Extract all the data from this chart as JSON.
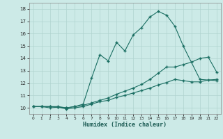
{
  "xlabel": "Humidex (Indice chaleur)",
  "background_color": "#cceae7",
  "grid_color": "#b0d4d0",
  "line_color": "#1a6e62",
  "xlim": [
    -0.5,
    22.5
  ],
  "ylim": [
    9.5,
    18.5
  ],
  "xticks": [
    0,
    1,
    2,
    3,
    4,
    5,
    6,
    7,
    8,
    9,
    10,
    11,
    12,
    13,
    14,
    15,
    16,
    17,
    18,
    19,
    20,
    21,
    22
  ],
  "yticks": [
    10,
    11,
    12,
    13,
    14,
    15,
    16,
    17,
    18
  ],
  "line1_x": [
    0,
    1,
    2,
    3,
    4,
    5,
    6,
    7,
    8,
    9,
    10,
    11,
    12,
    13,
    14,
    15,
    16,
    17,
    18,
    20,
    22
  ],
  "line1_y": [
    10.1,
    10.1,
    10.1,
    10.1,
    10.0,
    10.1,
    10.3,
    12.4,
    14.3,
    13.8,
    15.3,
    14.6,
    15.9,
    16.5,
    17.35,
    17.8,
    17.5,
    16.6,
    15.0,
    12.3,
    12.2
  ],
  "line2_x": [
    0,
    1,
    2,
    3,
    4,
    5,
    6,
    7,
    8,
    9,
    10,
    11,
    12,
    13,
    14,
    15,
    16,
    17,
    18,
    19,
    20,
    21,
    22
  ],
  "line2_y": [
    10.1,
    10.1,
    10.1,
    10.05,
    10.0,
    10.1,
    10.2,
    10.4,
    10.6,
    10.8,
    11.1,
    11.35,
    11.6,
    11.9,
    12.3,
    12.8,
    13.3,
    13.3,
    13.5,
    13.7,
    14.0,
    14.1,
    12.9
  ],
  "line3_x": [
    0,
    1,
    2,
    3,
    4,
    5,
    6,
    7,
    8,
    9,
    10,
    11,
    12,
    13,
    14,
    15,
    16,
    17,
    18,
    19,
    20,
    21,
    22
  ],
  "line3_y": [
    10.1,
    10.1,
    10.0,
    10.05,
    9.9,
    10.0,
    10.1,
    10.3,
    10.5,
    10.6,
    10.85,
    11.0,
    11.2,
    11.4,
    11.6,
    11.85,
    12.05,
    12.3,
    12.2,
    12.1,
    12.1,
    12.25,
    12.3
  ]
}
